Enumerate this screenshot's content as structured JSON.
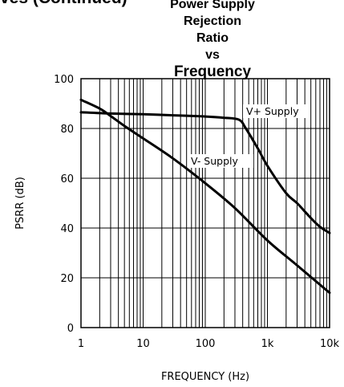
{
  "header": {
    "cutoff_text": "ves (Continued)"
  },
  "chart_data": {
    "type": "line",
    "title_lines": [
      "Power Supply Rejection",
      "Ratio",
      "vs",
      "Frequency"
    ],
    "xlabel": "FREQUENCY (Hz)",
    "ylabel": "PSRR (dB)",
    "x_scale": "log",
    "xlim": [
      1,
      10000
    ],
    "ylim": [
      0,
      100
    ],
    "x_ticks": [
      1,
      10,
      100,
      1000,
      10000
    ],
    "x_tick_labels": [
      "1",
      "10",
      "100",
      "1k",
      "10k"
    ],
    "y_ticks": [
      0,
      20,
      40,
      60,
      80,
      100
    ],
    "y_tick_labels": [
      "0",
      "20",
      "40",
      "60",
      "80",
      "100"
    ],
    "grid": true,
    "series": [
      {
        "name": "V+ Supply",
        "x": [
          1,
          3,
          10,
          30,
          100,
          200,
          350,
          450,
          700,
          1000,
          2000,
          3000,
          5000,
          7000,
          10000
        ],
        "y": [
          86.5,
          86,
          85.7,
          85.3,
          84.8,
          84.3,
          83.5,
          80,
          72,
          65,
          54,
          50,
          44,
          40.5,
          38
        ]
      },
      {
        "name": "V- Supply",
        "x": [
          1,
          2,
          3,
          5,
          10,
          30,
          100,
          300,
          1000,
          3000,
          10000
        ],
        "y": [
          91.5,
          88,
          85,
          81,
          76,
          68,
          58,
          48,
          35,
          25,
          14
        ]
      }
    ],
    "annotations": [
      {
        "text": "V+ Supply",
        "series": "V+ Supply"
      },
      {
        "text": "V- Supply",
        "series": "V- Supply"
      }
    ]
  }
}
